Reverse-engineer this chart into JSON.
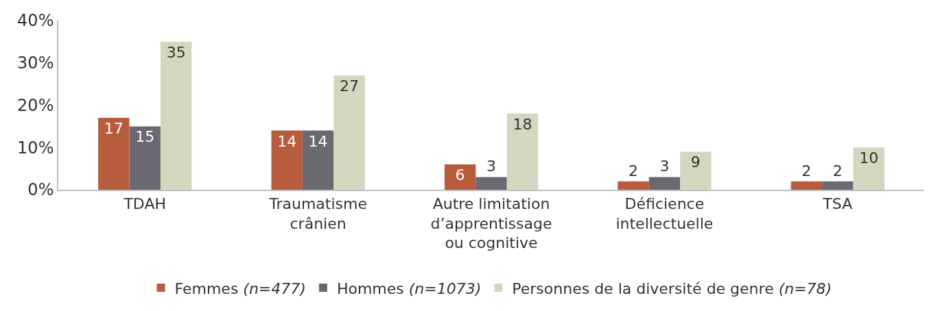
{
  "chart_data": {
    "type": "bar",
    "categories": [
      "TDAH",
      "Traumatisme\ncrânien",
      "Autre limitation\nd’apprentissage\nou cognitive",
      "Déficience\nintellectuelle",
      "TSA"
    ],
    "series": [
      {
        "name": "Femmes (n=477)",
        "color": "#b85c3e",
        "values": [
          17,
          14,
          6,
          2,
          2
        ]
      },
      {
        "name": "Hommes (n=1073)",
        "color": "#6b6870",
        "values": [
          15,
          14,
          3,
          3,
          2
        ]
      },
      {
        "name": "Personnes de la diversité de genre (n=78)",
        "color": "#d4d6bf",
        "values": [
          35,
          27,
          18,
          9,
          10
        ]
      }
    ],
    "ylim": [
      0,
      40
    ],
    "yticks": [
      {
        "value": 0,
        "label": "0%"
      },
      {
        "value": 10,
        "label": "10%"
      },
      {
        "value": 20,
        "label": "20%"
      },
      {
        "value": 30,
        "label": "30%"
      },
      {
        "value": 40,
        "label": "40%"
      }
    ],
    "grid": false,
    "legend": "bottom",
    "data_labels": true
  }
}
